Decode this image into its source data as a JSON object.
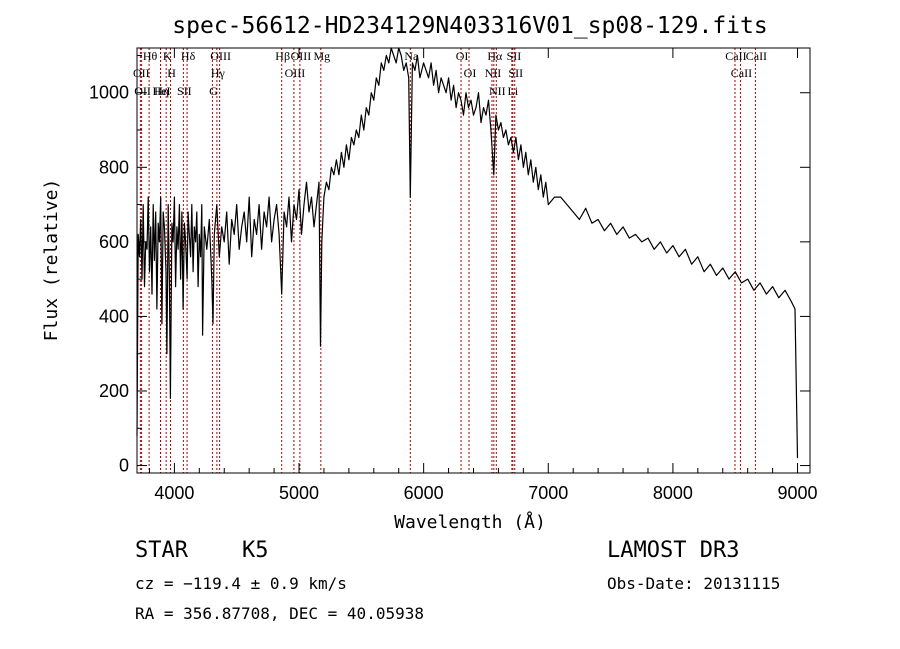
{
  "chart_data": {
    "type": "line",
    "title": "spec-56612-HD234129N403316V01_sp08-129.fits",
    "xlabel": "Wavelength (Å)",
    "ylabel": "Flux (relative)",
    "xlim": [
      3700,
      9100
    ],
    "ylim": [
      -20,
      1120
    ],
    "xticks": [
      4000,
      5000,
      6000,
      7000,
      8000,
      9000
    ],
    "yticks": [
      0,
      200,
      400,
      600,
      800,
      1000
    ],
    "grid": false,
    "series": [
      {
        "name": "flux",
        "x": [
          3700,
          3710,
          3720,
          3730,
          3740,
          3750,
          3760,
          3770,
          3780,
          3790,
          3800,
          3810,
          3820,
          3830,
          3840,
          3850,
          3860,
          3870,
          3880,
          3890,
          3900,
          3910,
          3920,
          3933,
          3940,
          3950,
          3960,
          3968,
          3980,
          3990,
          4000,
          4010,
          4020,
          4030,
          4040,
          4050,
          4060,
          4070,
          4080,
          4090,
          4102,
          4110,
          4120,
          4130,
          4140,
          4150,
          4160,
          4170,
          4180,
          4190,
          4200,
          4210,
          4220,
          4226,
          4240,
          4260,
          4280,
          4300,
          4310,
          4320,
          4340,
          4360,
          4380,
          4400,
          4420,
          4440,
          4460,
          4480,
          4500,
          4520,
          4540,
          4560,
          4580,
          4600,
          4620,
          4640,
          4660,
          4680,
          4700,
          4720,
          4740,
          4760,
          4780,
          4800,
          4820,
          4840,
          4861,
          4880,
          4900,
          4920,
          4940,
          4960,
          4980,
          5000,
          5020,
          5040,
          5060,
          5080,
          5100,
          5120,
          5140,
          5160,
          5172,
          5183,
          5200,
          5220,
          5240,
          5260,
          5280,
          5300,
          5320,
          5340,
          5360,
          5380,
          5400,
          5420,
          5440,
          5460,
          5480,
          5500,
          5520,
          5540,
          5560,
          5580,
          5600,
          5620,
          5640,
          5660,
          5680,
          5700,
          5720,
          5740,
          5760,
          5780,
          5800,
          5820,
          5840,
          5860,
          5880,
          5893,
          5910,
          5930,
          5950,
          5970,
          6000,
          6020,
          6040,
          6060,
          6080,
          6100,
          6120,
          6140,
          6160,
          6180,
          6200,
          6220,
          6240,
          6260,
          6280,
          6300,
          6320,
          6340,
          6360,
          6380,
          6400,
          6420,
          6440,
          6460,
          6480,
          6500,
          6520,
          6540,
          6563,
          6580,
          6600,
          6620,
          6640,
          6660,
          6680,
          6700,
          6720,
          6740,
          6760,
          6780,
          6800,
          6820,
          6840,
          6860,
          6880,
          6900,
          6920,
          6940,
          6960,
          6980,
          7000,
          7050,
          7100,
          7150,
          7200,
          7250,
          7300,
          7350,
          7400,
          7450,
          7500,
          7550,
          7600,
          7650,
          7700,
          7750,
          7800,
          7850,
          7900,
          7950,
          8000,
          8050,
          8100,
          8150,
          8200,
          8250,
          8300,
          8350,
          8400,
          8450,
          8500,
          8550,
          8600,
          8650,
          8700,
          8750,
          8800,
          8850,
          8900,
          8950,
          8980,
          9000
        ],
        "values": [
          80,
          620,
          560,
          660,
          500,
          700,
          480,
          600,
          580,
          720,
          520,
          640,
          460,
          700,
          550,
          680,
          420,
          650,
          600,
          720,
          380,
          680,
          640,
          520,
          300,
          700,
          500,
          180,
          650,
          600,
          720,
          480,
          640,
          580,
          700,
          500,
          680,
          420,
          650,
          600,
          500,
          680,
          620,
          560,
          700,
          520,
          640,
          600,
          680,
          480,
          620,
          560,
          700,
          350,
          640,
          580,
          660,
          500,
          380,
          620,
          700,
          560,
          640,
          600,
          680,
          540,
          660,
          620,
          700,
          580,
          640,
          680,
          600,
          720,
          560,
          660,
          620,
          700,
          580,
          680,
          640,
          720,
          600,
          660,
          700,
          620,
          460,
          680,
          640,
          720,
          600,
          700,
          660,
          740,
          620,
          700,
          760,
          680,
          720,
          640,
          700,
          760,
          320,
          600,
          720,
          760,
          740,
          800,
          780,
          820,
          780,
          840,
          800,
          860,
          820,
          880,
          860,
          900,
          880,
          940,
          900,
          960,
          940,
          1000,
          980,
          1040,
          1020,
          1080,
          1060,
          1100,
          1080,
          1120,
          1100,
          1080,
          1120,
          1100,
          1060,
          1080,
          1040,
          720,
          1080,
          1060,
          1100,
          1040,
          1080,
          1060,
          1040,
          1080,
          1020,
          1060,
          1000,
          1040,
          1020,
          1000,
          1040,
          980,
          1020,
          960,
          1000,
          980,
          940,
          1000,
          960,
          980,
          940,
          960,
          1000,
          920,
          960,
          940,
          980,
          900,
          780,
          940,
          900,
          920,
          880,
          900,
          860,
          880,
          840,
          880,
          820,
          860,
          800,
          840,
          780,
          820,
          760,
          800,
          740,
          780,
          720,
          760,
          700,
          720,
          720,
          700,
          680,
          660,
          690,
          650,
          660,
          630,
          650,
          620,
          640,
          610,
          620,
          600,
          610,
          580,
          600,
          570,
          590,
          560,
          580,
          540,
          560,
          520,
          540,
          510,
          530,
          500,
          520,
          490,
          500,
          470,
          490,
          460,
          480,
          450,
          470,
          440,
          420,
          20
        ]
      }
    ],
    "line_markers": [
      {
        "name": "Hθ",
        "x": 3797
      },
      {
        "name": "OII",
        "x": 3727
      },
      {
        "name": "OII",
        "x": 3737
      },
      {
        "name": "K",
        "x": 3934
      },
      {
        "name": "H",
        "x": 3969
      },
      {
        "name": "Hη",
        "x": 3889
      },
      {
        "name": "HeI",
        "x": 3889
      },
      {
        "name": "SII",
        "x": 4072
      },
      {
        "name": "Hδ",
        "x": 4102
      },
      {
        "name": "OIII",
        "x": 4363
      },
      {
        "name": "Hγ",
        "x": 4341
      },
      {
        "name": "G",
        "x": 4305
      },
      {
        "name": "Hβ",
        "x": 4861
      },
      {
        "name": "OIII",
        "x": 4959
      },
      {
        "name": "OIII",
        "x": 5007
      },
      {
        "name": "Mg",
        "x": 5175
      },
      {
        "name": "Na",
        "x": 5893
      },
      {
        "name": "OI",
        "x": 6300
      },
      {
        "name": "OI",
        "x": 6364
      },
      {
        "name": "Hα",
        "x": 6563
      },
      {
        "name": "NII",
        "x": 6548
      },
      {
        "name": "NII",
        "x": 6583
      },
      {
        "name": "SII",
        "x": 6716
      },
      {
        "name": "SII",
        "x": 6731
      },
      {
        "name": "Li",
        "x": 6708
      },
      {
        "name": "CaII",
        "x": 8498
      },
      {
        "name": "CaII",
        "x": 8542
      },
      {
        "name": "CaII",
        "x": 8662
      }
    ]
  },
  "info": {
    "class": "STAR",
    "subclass": "K5",
    "redshift": "cz = −119.4 ± 0.9 km/s",
    "coords": "RA = 356.87708, DEC =  40.05938",
    "survey": "LAMOST DR3",
    "obs_date": "Obs-Date: 20131115"
  },
  "colors": {
    "line": "#000000",
    "marker": "#b00000",
    "axes": "#000000"
  }
}
